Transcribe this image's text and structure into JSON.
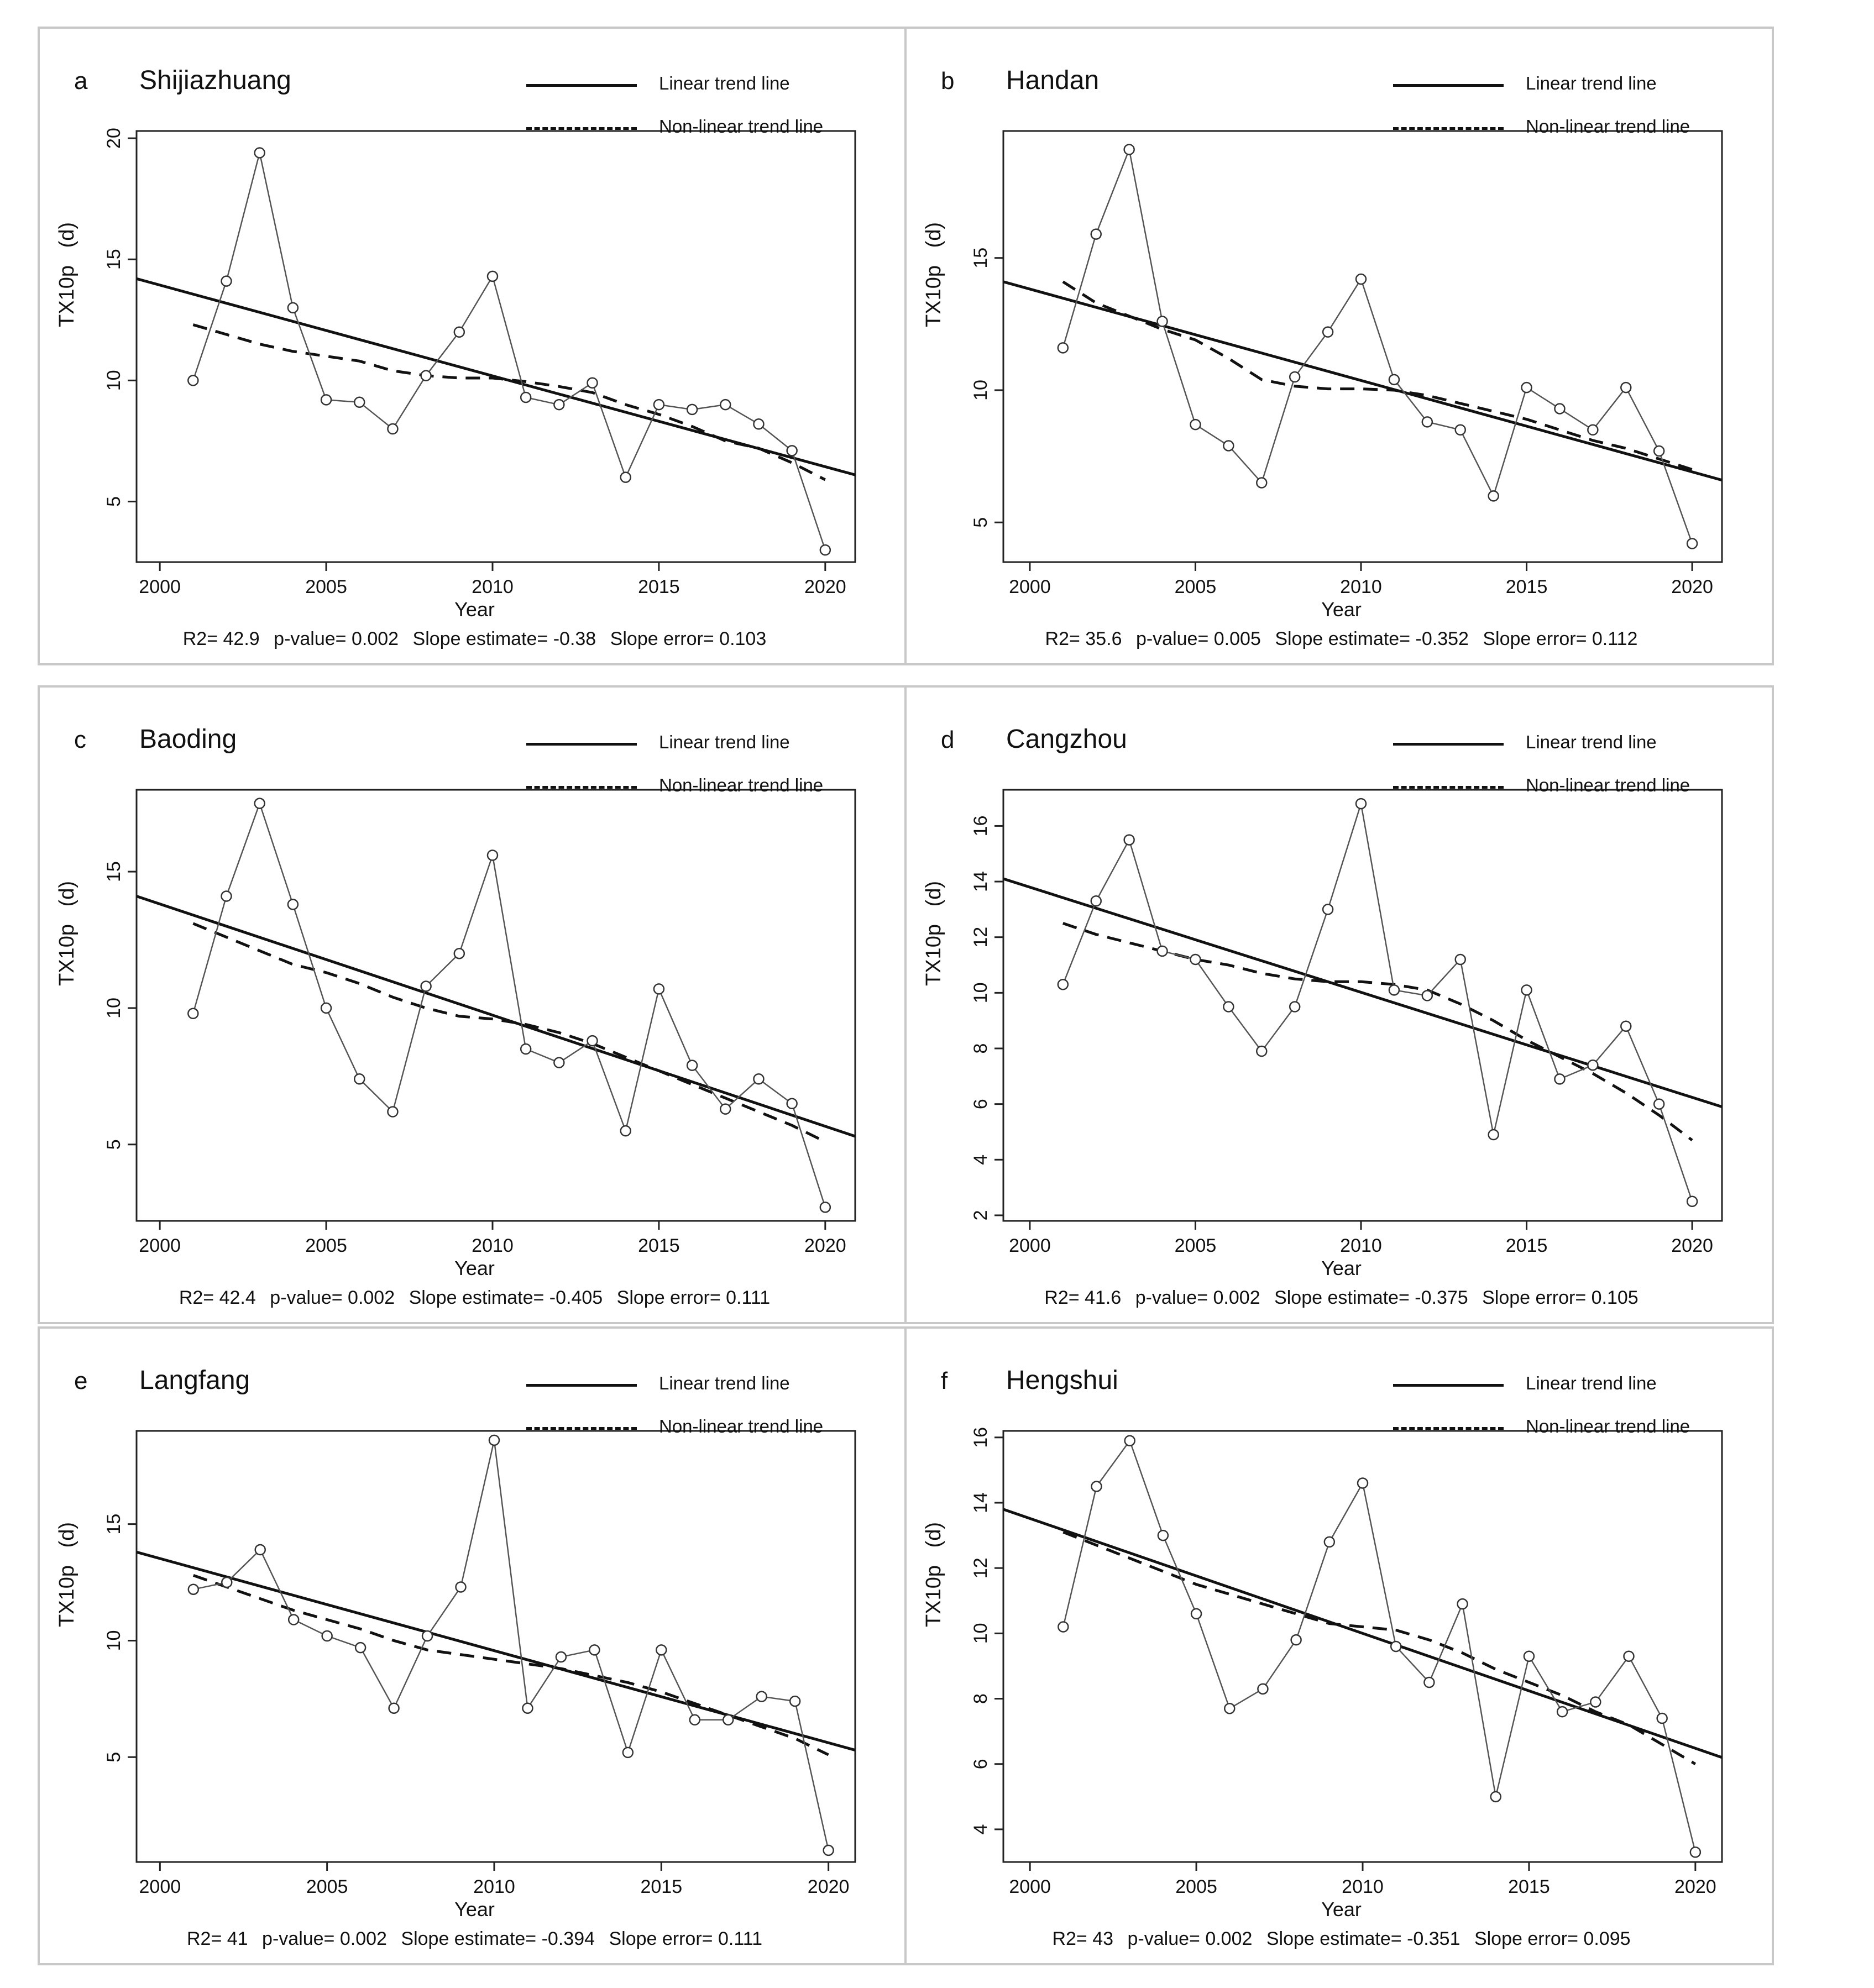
{
  "legend": {
    "linear": "Linear trend line",
    "nonlinear": "Non-linear trend line"
  },
  "x_axis_title": "Year",
  "y_axis_title": "TX10p   (d)",
  "x_ticks": [
    "2000",
    "2005",
    "2010",
    "2015",
    "2020"
  ],
  "chart_data": [
    {
      "type": "line",
      "letter": "a",
      "title": "Shijiazhuang",
      "x": [
        2001,
        2002,
        2003,
        2004,
        2005,
        2006,
        2007,
        2008,
        2009,
        2010,
        2011,
        2012,
        2013,
        2014,
        2015,
        2016,
        2017,
        2018,
        2019,
        2020
      ],
      "values": [
        10,
        14.1,
        19.4,
        13,
        9.2,
        9.1,
        8,
        10.2,
        12,
        14.3,
        9.3,
        9,
        9.9,
        6,
        9,
        8.8,
        9,
        8.2,
        7.1,
        3
      ],
      "linear": [
        14.2,
        6.1
      ],
      "nonlinear": [
        12.3,
        11.9,
        11.5,
        11.2,
        11,
        10.8,
        10.4,
        10.2,
        10.1,
        10.1,
        9.95,
        9.75,
        9.5,
        9,
        8.6,
        8.1,
        7.5,
        7.2,
        6.6,
        5.9
      ],
      "xlim": [
        1999.3,
        2020.9
      ],
      "ylim": [
        2.5,
        20.3
      ],
      "yticks": [
        5,
        10,
        15,
        20
      ],
      "stats": {
        "r2": "R2= 42.9",
        "p": "p-value= 0.002",
        "slope": "Slope estimate= -0.38",
        "error": "Slope error= 0.103"
      }
    },
    {
      "type": "line",
      "letter": "b",
      "title": "Handan",
      "x": [
        2001,
        2002,
        2003,
        2004,
        2005,
        2006,
        2007,
        2008,
        2009,
        2010,
        2011,
        2012,
        2013,
        2014,
        2015,
        2016,
        2017,
        2018,
        2019,
        2020
      ],
      "values": [
        11.6,
        15.9,
        19.1,
        12.6,
        8.7,
        7.9,
        6.5,
        10.5,
        12.2,
        14.2,
        10.4,
        8.8,
        8.5,
        6,
        10.1,
        9.3,
        8.5,
        10.1,
        7.7,
        4.2
      ],
      "linear": [
        14.1,
        6.6
      ],
      "nonlinear": [
        14.1,
        13.3,
        12.8,
        12.3,
        11.9,
        11.2,
        10.4,
        10.15,
        10.05,
        10.05,
        10,
        9.8,
        9.5,
        9.2,
        8.9,
        8.5,
        8.1,
        7.8,
        7.4,
        7
      ],
      "xlim": [
        1999.2,
        2020.9
      ],
      "ylim": [
        3.5,
        19.8
      ],
      "yticks": [
        5,
        10,
        15
      ],
      "stats": {
        "r2": "R2= 35.6",
        "p": "p-value= 0.005",
        "slope": "Slope estimate= -0.352",
        "error": "Slope error= 0.112"
      }
    },
    {
      "type": "line",
      "letter": "c",
      "title": "Baoding",
      "x": [
        2001,
        2002,
        2003,
        2004,
        2005,
        2006,
        2007,
        2008,
        2009,
        2010,
        2011,
        2012,
        2013,
        2014,
        2015,
        2016,
        2017,
        2018,
        2019,
        2020
      ],
      "values": [
        9.8,
        14.1,
        17.5,
        13.8,
        10,
        7.4,
        6.2,
        10.8,
        12,
        15.6,
        8.5,
        8,
        8.8,
        5.5,
        10.7,
        7.9,
        6.3,
        7.4,
        6.5,
        2.7
      ],
      "linear": [
        14.1,
        5.3
      ],
      "nonlinear": [
        13.1,
        12.6,
        12.1,
        11.6,
        11.3,
        10.9,
        10.4,
        10,
        9.7,
        9.6,
        9.4,
        9.1,
        8.7,
        8.2,
        7.7,
        7.2,
        6.7,
        6.2,
        5.7,
        5.1
      ],
      "xlim": [
        1999.3,
        2020.9
      ],
      "ylim": [
        2.2,
        18.0
      ],
      "yticks": [
        5,
        10,
        15
      ],
      "stats": {
        "r2": "R2= 42.4",
        "p": "p-value= 0.002",
        "slope": "Slope estimate= -0.405",
        "error": "Slope error= 0.111"
      }
    },
    {
      "type": "line",
      "letter": "d",
      "title": "Cangzhou",
      "x": [
        2001,
        2002,
        2003,
        2004,
        2005,
        2006,
        2007,
        2008,
        2009,
        2010,
        2011,
        2012,
        2013,
        2014,
        2015,
        2016,
        2017,
        2018,
        2019,
        2020
      ],
      "values": [
        10.3,
        13.3,
        15.5,
        11.5,
        11.2,
        9.5,
        7.9,
        9.5,
        13,
        16.8,
        10.1,
        9.9,
        11.2,
        4.9,
        10.1,
        6.9,
        7.4,
        8.8,
        6,
        2.5
      ],
      "linear": [
        14.1,
        5.9
      ],
      "nonlinear": [
        12.5,
        12.1,
        11.8,
        11.5,
        11.2,
        11,
        10.7,
        10.5,
        10.4,
        10.4,
        10.3,
        10.1,
        9.6,
        9,
        8.3,
        7.7,
        7.1,
        6.4,
        5.6,
        4.7
      ],
      "xlim": [
        1999.2,
        2020.9
      ],
      "ylim": [
        1.8,
        17.3
      ],
      "yticks": [
        2,
        4,
        6,
        8,
        10,
        12,
        14,
        16
      ],
      "stats": {
        "r2": "R2= 41.6",
        "p": "p-value= 0.002",
        "slope": "Slope estimate= -0.375",
        "error": "Slope error= 0.105"
      }
    },
    {
      "type": "line",
      "letter": "e",
      "title": "Langfang",
      "x": [
        2001,
        2002,
        2003,
        2004,
        2005,
        2006,
        2007,
        2008,
        2009,
        2010,
        2011,
        2012,
        2013,
        2014,
        2015,
        2016,
        2017,
        2018,
        2019,
        2020
      ],
      "values": [
        12.2,
        12.5,
        13.9,
        10.9,
        10.2,
        9.7,
        7.1,
        10.2,
        12.3,
        18.6,
        7.1,
        9.3,
        9.6,
        5.2,
        9.6,
        6.6,
        6.6,
        7.6,
        7.4,
        1
      ],
      "linear": [
        13.8,
        5.3
      ],
      "nonlinear": [
        12.8,
        12.3,
        11.8,
        11.3,
        10.9,
        10.5,
        10,
        9.6,
        9.4,
        9.2,
        9,
        8.8,
        8.5,
        8.2,
        7.8,
        7.3,
        6.8,
        6.3,
        5.8,
        5.1
      ],
      "xlim": [
        1999.3,
        2020.8
      ],
      "ylim": [
        0.5,
        19.0
      ],
      "yticks": [
        5,
        10,
        15
      ],
      "stats": {
        "r2": "R2= 41",
        "p": "p-value= 0.002",
        "slope": "Slope estimate= -0.394",
        "error": "Slope error= 0.111"
      }
    },
    {
      "type": "line",
      "letter": "f",
      "title": "Hengshui",
      "x": [
        2001,
        2002,
        2003,
        2004,
        2005,
        2006,
        2007,
        2008,
        2009,
        2010,
        2011,
        2012,
        2013,
        2014,
        2015,
        2016,
        2017,
        2018,
        2019,
        2020
      ],
      "values": [
        10.2,
        14.5,
        15.9,
        13,
        10.6,
        7.7,
        8.3,
        9.8,
        12.8,
        14.6,
        9.6,
        8.5,
        10.9,
        5,
        9.3,
        7.6,
        7.9,
        9.3,
        7.4,
        3.3
      ],
      "linear": [
        13.8,
        6.2
      ],
      "nonlinear": [
        13.1,
        12.7,
        12.3,
        11.9,
        11.5,
        11.2,
        10.9,
        10.6,
        10.3,
        10.2,
        10.1,
        9.8,
        9.4,
        8.9,
        8.5,
        8.1,
        7.6,
        7.2,
        6.6,
        6
      ],
      "xlim": [
        1999.2,
        2020.8
      ],
      "ylim": [
        3.0,
        16.2
      ],
      "yticks": [
        4,
        6,
        8,
        10,
        12,
        14,
        16
      ],
      "stats": {
        "r2": "R2= 43",
        "p": "p-value= 0.002",
        "slope": "Slope estimate= -0.351",
        "error": "Slope error= 0.095"
      }
    }
  ]
}
